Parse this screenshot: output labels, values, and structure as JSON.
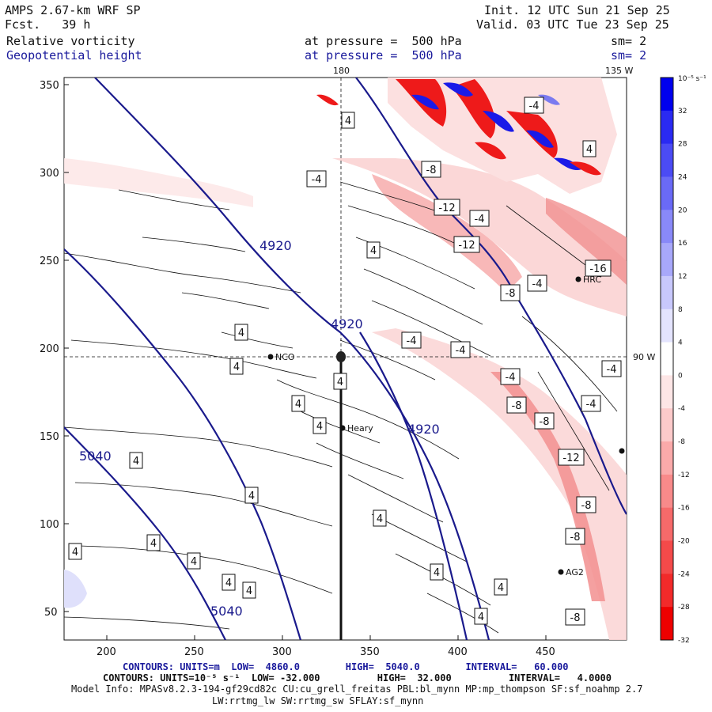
{
  "header": {
    "model": "AMPS 2.67-km WRF SP",
    "fcst_label": "Fcst.",
    "fcst_value": "39 h",
    "init_label": "Init.",
    "init_value": "12 UTC Sun 21 Sep 25",
    "valid_label": "Valid.",
    "valid_value": "03 UTC Tue 23 Sep 25",
    "field1": "Relative vorticity",
    "field2": "Geopotential height",
    "pressure1": "at pressure =  500 hPa",
    "pressure2": "at pressure =  500 hPa",
    "sm1": "sm= 2",
    "sm2": "sm= 2"
  },
  "map": {
    "x_ticks": [
      "200",
      "250",
      "300",
      "350",
      "400",
      "450"
    ],
    "y_ticks": [
      "350",
      "300",
      "250",
      "200",
      "150",
      "100",
      "50"
    ],
    "meridian_top_left": "180",
    "meridian_top_right": "135 W",
    "meridian_right": "90 W",
    "height_labels": [
      "4920",
      "4920",
      "4920",
      "5040",
      "5040"
    ],
    "vort_labels": [
      "-4",
      "-4",
      "-8",
      "-12",
      "-4",
      "-12",
      "-16",
      "-4",
      "-8",
      "-4",
      "-4",
      "-4",
      "-8",
      "-8",
      "-12",
      "-8",
      "-8",
      "-8",
      "-4",
      "-4",
      "4",
      "4",
      "4",
      "4",
      "4",
      "4",
      "4",
      "4",
      "4",
      "4",
      "4",
      "4",
      "4",
      "4",
      "4",
      "4",
      "4",
      "4",
      "4"
    ],
    "stations": [
      "NCO",
      "Heary",
      "HRC",
      "AG2"
    ]
  },
  "colorbar": {
    "unit": "10⁻⁵ s⁻¹",
    "ticks": [
      "32",
      "28",
      "24",
      "20",
      "16",
      "12",
      "8",
      "4",
      "0",
      "-4",
      "-8",
      "-12",
      "-16",
      "-20",
      "-24",
      "-28",
      "-32"
    ],
    "colors": [
      "#0000ee",
      "#2a2af2",
      "#4b4bf4",
      "#6a6af6",
      "#8989f8",
      "#a8a8fa",
      "#c8c8fc",
      "#e4e4fe",
      "#ffffff",
      "#fde6e6",
      "#fccaca",
      "#faaaaa",
      "#f88a8a",
      "#f66a6a",
      "#f44a4a",
      "#f22a2a",
      "#ee0000"
    ]
  },
  "footer": {
    "line1": "CONTOURS: UNITS=m  LOW=  4860.0        HIGH=  5040.0        INTERVAL=   60.000",
    "line2": "CONTOURS: UNITS=10⁻⁵ s⁻¹  LOW= -32.000          HIGH=  32.000          INTERVAL=   4.0000",
    "line3": "Model Info: MPASv8.2.3-194-gf29cd82c CU:cu_grell_freitas PBL:bl_mynn MP:mp_thompson SF:sf_noahmp 2.7",
    "line4": "LW:rrtmg_lw SW:rrtmg_sw SFLAY:sf_mynn"
  }
}
